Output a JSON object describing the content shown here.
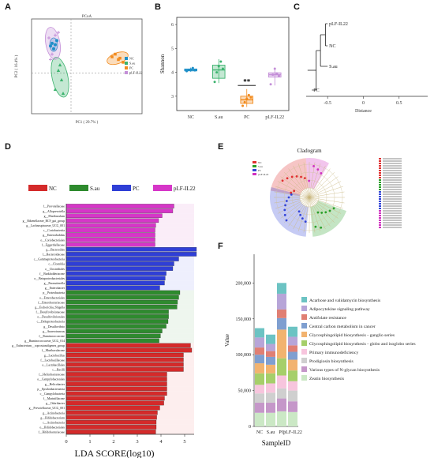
{
  "panels": {
    "A": "A",
    "B": "B",
    "C": "C",
    "D": "D",
    "E": "E",
    "F": "F"
  },
  "chart_data": [
    {
      "panel": "A",
      "type": "scatter",
      "title": "PCoA",
      "xlabel": "PC1 ( 29.7% )",
      "ylabel": "PC2 ( 16.4% )",
      "legend": [
        "NC",
        "S.au",
        "PC",
        "pLF-IL22"
      ],
      "colors": {
        "NC": "#1e8fc8",
        "S.au": "#3cb36e",
        "PC": "#f28b1e",
        "pLF-IL22": "#c48fd8"
      },
      "series": [
        {
          "name": "NC",
          "points": [
            [
              -0.12,
              0.22
            ],
            [
              -0.1,
              0.21
            ],
            [
              -0.11,
              0.18
            ],
            [
              -0.09,
              0.24
            ],
            [
              -0.13,
              0.2
            ]
          ]
        },
        {
          "name": "S.au",
          "points": [
            [
              -0.08,
              0.02
            ],
            [
              -0.06,
              -0.05
            ],
            [
              -0.1,
              -0.12
            ],
            [
              -0.05,
              -0.15
            ],
            [
              -0.07,
              0.06
            ]
          ]
        },
        {
          "name": "PC",
          "points": [
            [
              0.26,
              0.12
            ],
            [
              0.3,
              0.1
            ],
            [
              0.33,
              0.08
            ],
            [
              0.28,
              0.14
            ],
            [
              0.31,
              0.11
            ]
          ]
        },
        {
          "name": "pLF-IL22",
          "points": [
            [
              -0.14,
              0.26
            ],
            [
              -0.08,
              0.3
            ],
            [
              -0.12,
              0.14
            ],
            [
              -0.1,
              0.28
            ],
            [
              -0.13,
              0.1
            ]
          ]
        }
      ]
    },
    {
      "panel": "B",
      "type": "box",
      "ylabel": "Shannon",
      "categories": [
        "NC",
        "S.au",
        "PC",
        "pLF-IL22"
      ],
      "yticks": [
        "3",
        "4",
        "5",
        "6"
      ],
      "ylim": [
        2.4,
        6.3
      ],
      "significance": "**",
      "colors": [
        "#1e8fc8",
        "#3cb36e",
        "#f28b1e",
        "#c48fd8"
      ],
      "boxes": [
        {
          "min": 4.02,
          "q1": 4.06,
          "median": 4.1,
          "q3": 4.14,
          "max": 4.2,
          "points": [
            4.05,
            4.1,
            4.12,
            4.18,
            4.08
          ]
        },
        {
          "min": 3.55,
          "q1": 3.75,
          "median": 4.1,
          "q3": 4.3,
          "max": 4.55,
          "points": [
            3.6,
            4.0,
            4.25,
            4.45,
            4.15
          ]
        },
        {
          "min": 2.55,
          "q1": 2.7,
          "median": 2.85,
          "q3": 3.0,
          "max": 3.3,
          "points": [
            2.6,
            2.75,
            2.9,
            3.05,
            2.95
          ]
        },
        {
          "min": 3.45,
          "q1": 3.8,
          "median": 3.9,
          "q3": 3.98,
          "max": 4.2,
          "points": [
            3.5,
            3.9,
            4.15,
            3.95,
            3.85
          ]
        }
      ]
    },
    {
      "panel": "C",
      "type": "dendrogram",
      "xlabel": "Distance",
      "xticks": [
        "-0.5",
        "0",
        "0.5"
      ],
      "leaves": [
        "pLF-IL22",
        "NC",
        "S.au",
        "PC"
      ]
    },
    {
      "panel": "D",
      "type": "bar",
      "orientation": "horizontal",
      "xlabel": "LDA SCORE(log10)",
      "xticks": [
        "0",
        "1",
        "2",
        "3",
        "4",
        "5"
      ],
      "xlim": [
        0,
        5.4
      ],
      "legend": [
        "NC",
        "S.au",
        "PC",
        "pLF-IL22"
      ],
      "group_colors": {
        "NC": "#d42a2a",
        "S.au": "#2e8a2e",
        "PC": "#2f3fd6",
        "pLF-IL22": "#d636c8"
      },
      "bars": [
        {
          "label": "f__Prevotellaceae",
          "group": "pLF-IL22",
          "value": 4.55
        },
        {
          "label": "g__Alloprevotella",
          "group": "pLF-IL22",
          "value": 4.5
        },
        {
          "label": "g__Muribaculum",
          "group": "pLF-IL22",
          "value": 4.05
        },
        {
          "label": "g__Rikenellaceae_RC9_gut_group",
          "group": "pLF-IL22",
          "value": 3.9
        },
        {
          "label": "g__Lachnospiraceae_UCG_001",
          "group": "pLF-IL22",
          "value": 3.78
        },
        {
          "label": "c__Coriobacteriia",
          "group": "pLF-IL22",
          "value": 3.75
        },
        {
          "label": "g__Enterorhabdus",
          "group": "pLF-IL22",
          "value": 3.75
        },
        {
          "label": "o__Coriobacteriales",
          "group": "pLF-IL22",
          "value": 3.75
        },
        {
          "label": "f__Eggerthellaceae",
          "group": "pLF-IL22",
          "value": 3.75
        },
        {
          "label": "g__Bacteroides",
          "group": "PC",
          "value": 5.5
        },
        {
          "label": "f__Bacteroidaceae",
          "group": "PC",
          "value": 5.5
        },
        {
          "label": "c__Gammaproteobacteria",
          "group": "PC",
          "value": 4.75
        },
        {
          "label": "c__Clostridia",
          "group": "PC",
          "value": 4.55
        },
        {
          "label": "o__Clostridiales",
          "group": "PC",
          "value": 4.5
        },
        {
          "label": "f__Burkholderiaceae",
          "group": "PC",
          "value": 4.22
        },
        {
          "label": "o__Betaproteobacteriales",
          "group": "PC",
          "value": 4.18
        },
        {
          "label": "g__Parasutterella",
          "group": "PC",
          "value": 4.15
        },
        {
          "label": "g__Enterobacter",
          "group": "PC",
          "value": 3.95
        },
        {
          "label": "p__Proteobacteria",
          "group": "S.au",
          "value": 4.8
        },
        {
          "label": "o__Enterobacteriales",
          "group": "S.au",
          "value": 4.75
        },
        {
          "label": "f__Enterobacteriaceae",
          "group": "S.au",
          "value": 4.7
        },
        {
          "label": "g__Escherichia_Shigella",
          "group": "S.au",
          "value": 4.68
        },
        {
          "label": "f__Desulfovibrionaceae",
          "group": "S.au",
          "value": 4.32
        },
        {
          "label": "o__Desulfovibrionales",
          "group": "S.au",
          "value": 4.32
        },
        {
          "label": "c__Deltaproteobacteria",
          "group": "S.au",
          "value": 4.3
        },
        {
          "label": "g__Desulfovibrio",
          "group": "S.au",
          "value": 4.22
        },
        {
          "label": "g__Anaerotruncus",
          "group": "S.au",
          "value": 4.05
        },
        {
          "label": "f__Ruminococcaceae",
          "group": "S.au",
          "value": 3.98
        },
        {
          "label": "g__Ruminococcaceae_UCG_014",
          "group": "S.au",
          "value": 3.92
        },
        {
          "label": "g__Eubacterium__coprostanoligenes_group",
          "group": "NC",
          "value": 5.25
        },
        {
          "label": "f__Muribaculaceae",
          "group": "NC",
          "value": 5.3
        },
        {
          "label": "g__Lactobacillus",
          "group": "NC",
          "value": 4.95
        },
        {
          "label": "f__Lactobacillaceae",
          "group": "NC",
          "value": 4.95
        },
        {
          "label": "o__Lactobacillales",
          "group": "NC",
          "value": 4.95
        },
        {
          "label": "c__Bacilli",
          "group": "NC",
          "value": 4.95
        },
        {
          "label": "f__Helicobacteraceae",
          "group": "NC",
          "value": 4.25
        },
        {
          "label": "o__Campylobacterales",
          "group": "NC",
          "value": 4.25
        },
        {
          "label": "g__Helicobacter",
          "group": "NC",
          "value": 4.25
        },
        {
          "label": "p__Epsilonbacteraeota",
          "group": "NC",
          "value": 4.25
        },
        {
          "label": "c__Campylobacteria",
          "group": "NC",
          "value": 4.25
        },
        {
          "label": "f__Marinifilaceae",
          "group": "NC",
          "value": 4.15
        },
        {
          "label": "g__Odoribacter",
          "group": "NC",
          "value": 4.12
        },
        {
          "label": "g__Prevotellaceae_UCG_001",
          "group": "NC",
          "value": 3.95
        },
        {
          "label": "g__Actinobacteria",
          "group": "NC",
          "value": 3.85
        },
        {
          "label": "g__Bifidobacterium",
          "group": "NC",
          "value": 3.82
        },
        {
          "label": "c__Actinobacteria",
          "group": "NC",
          "value": 3.8
        },
        {
          "label": "o__Bifidobacteriales",
          "group": "NC",
          "value": 3.8
        },
        {
          "label": "f__Bifidobacteriaceae",
          "group": "NC",
          "value": 3.78
        }
      ]
    },
    {
      "panel": "E",
      "type": "cladogram",
      "title": "Cladogram",
      "legend": [
        "NC",
        "S.au",
        "PC",
        "pLF-IL22"
      ]
    },
    {
      "panel": "F",
      "type": "bar",
      "stacked": true,
      "xlabel": "SampleID",
      "ylabel": "Value",
      "categories": [
        "NC",
        "S.au",
        "PC",
        "pLF-IL22"
      ],
      "yticks": [
        "0",
        "50,000",
        "100,000",
        "150,000",
        "200,000"
      ],
      "ylim": [
        0,
        240000
      ],
      "series": [
        {
          "name": "Acarbose and validamycin biosynthesis",
          "color": "#6cc3c3",
          "values": [
            13000,
            13000,
            15000,
            14000
          ]
        },
        {
          "name": "Adipocytokine signaling pathway",
          "color": "#b7a5d8",
          "values": [
            14000,
            10000,
            22000,
            12000
          ]
        },
        {
          "name": "Antifolate resistance",
          "color": "#e07f73",
          "values": [
            10000,
            8000,
            12000,
            9000
          ]
        },
        {
          "name": "Central carbon metabolism in cancer",
          "color": "#7f9fd0",
          "values": [
            12000,
            11000,
            16000,
            11000
          ]
        },
        {
          "name": "Glycosphingolipid biosynthesis - ganglio series",
          "color": "#f2b36f",
          "values": [
            14000,
            12000,
            40000,
            15000
          ]
        },
        {
          "name": "Glycosphingolipid biosynthesis - globo and isoglobo series",
          "color": "#a6cf6a",
          "values": [
            16000,
            14000,
            24000,
            15000
          ]
        },
        {
          "name": "Primary immunodeficiency",
          "color": "#f7c5dd",
          "values": [
            12000,
            13000,
            18000,
            13000
          ]
        },
        {
          "name": "Prodigiosin biosynthesis",
          "color": "#cfcfcf",
          "values": [
            13000,
            14000,
            14000,
            15000
          ]
        },
        {
          "name": "Various types of N-glycan biosynthesis",
          "color": "#c597c9",
          "values": [
            14000,
            14000,
            18000,
            15000
          ]
        },
        {
          "name": "Zeatin biosynthesis",
          "color": "#cbe8c5",
          "values": [
            19000,
            19000,
            21000,
            20000
          ]
        }
      ]
    }
  ]
}
